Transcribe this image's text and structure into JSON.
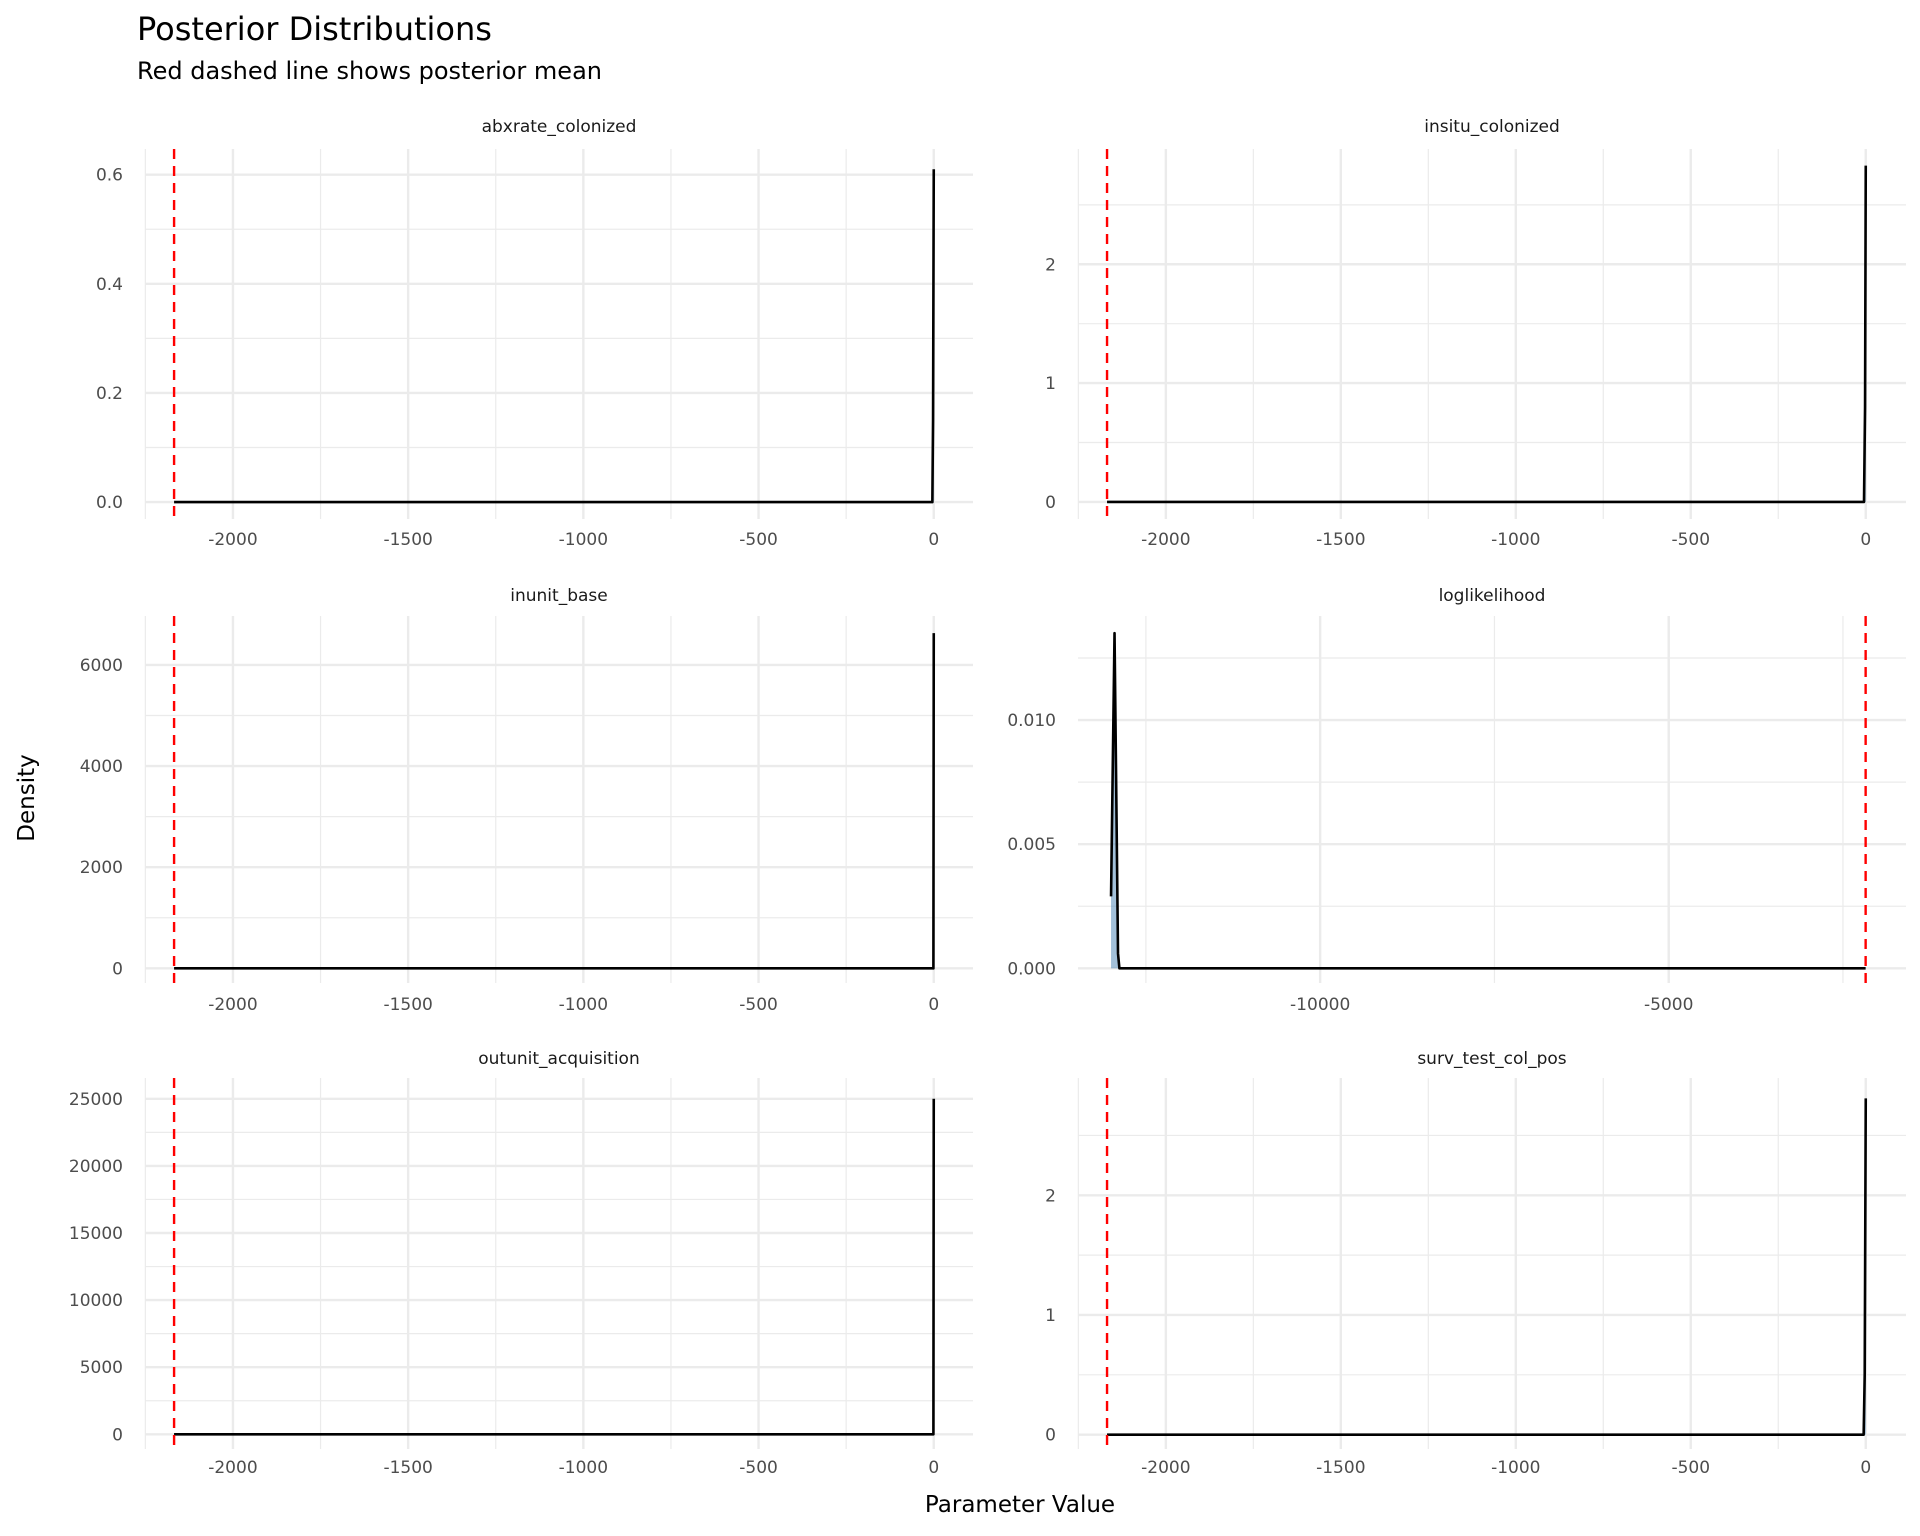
{
  "chart_data": {
    "type": "area",
    "title": "Posterior Distributions",
    "subtitle": "Red dashed line shows posterior mean",
    "xlabel": "Parameter Value",
    "ylabel": "Density",
    "grid": true,
    "colors": {
      "fill": "#4682B4",
      "line": "#000000",
      "mean_line": "#FF0000",
      "grid": "#EBEBEB"
    },
    "panels": [
      {
        "name": "abxrate_colonized",
        "xlim": [
          -2251,
          112
        ],
        "ylim": [
          -0.031,
          0.647
        ],
        "x_ticks": [
          -2000,
          -1500,
          -1000,
          -500,
          0
        ],
        "x_tick_labels": [
          "-2000",
          "-1500",
          "-1000",
          "-500",
          "0"
        ],
        "y_ticks": [
          0,
          0.2,
          0.4,
          0.6
        ],
        "y_tick_labels": [
          "0.0",
          "0.2",
          "0.4",
          "0.6"
        ],
        "mean": -2168,
        "density": [
          [
            -2168,
            0
          ],
          [
            -4,
            0
          ],
          [
            -2,
            0.15
          ],
          [
            0,
            0.61
          ]
        ]
      },
      {
        "name": "insitu_colonized",
        "xlim": [
          -2251,
          115
        ],
        "ylim": [
          -0.144,
          2.97
        ],
        "x_ticks": [
          -2000,
          -1500,
          -1000,
          -500,
          0
        ],
        "x_tick_labels": [
          "-2000",
          "-1500",
          "-1000",
          "-500",
          "0"
        ],
        "y_ticks": [
          0,
          1,
          2
        ],
        "y_tick_labels": [
          "0",
          "1",
          "2"
        ],
        "mean": -2168,
        "density": [
          [
            -2168,
            0
          ],
          [
            -5,
            0
          ],
          [
            -2,
            0.8
          ],
          [
            0,
            2.83
          ]
        ]
      },
      {
        "name": "inunit_base",
        "xlim": [
          -2251,
          112
        ],
        "ylim": [
          -290,
          6968
        ],
        "x_ticks": [
          -2000,
          -1500,
          -1000,
          -500,
          0
        ],
        "x_tick_labels": [
          "-2000",
          "-1500",
          "-1000",
          "-500",
          "0"
        ],
        "y_ticks": [
          0,
          2000,
          4000,
          6000
        ],
        "y_tick_labels": [
          "0",
          "2000",
          "4000",
          "6000"
        ],
        "mean": -2168,
        "density": [
          [
            -2168,
            0
          ],
          [
            -1,
            0
          ],
          [
            0,
            6630
          ]
        ]
      },
      {
        "name": "loglikelihood",
        "xlim": [
          -13474,
          -1596
        ],
        "ylim": [
          -0.00059,
          0.01419
        ],
        "x_ticks": [
          -10000,
          -5000
        ],
        "x_tick_labels": [
          "-10000",
          "-5000"
        ],
        "y_ticks": [
          0,
          0.005,
          0.01
        ],
        "y_tick_labels": [
          "0.000",
          "0.005",
          "0.010"
        ],
        "mean": -2175,
        "density": [
          [
            -13000,
            0.0029
          ],
          [
            -12950,
            0.0135
          ],
          [
            -12900,
            0.0006
          ],
          [
            -12880,
            0
          ],
          [
            -2175,
            0
          ]
        ]
      },
      {
        "name": "outunit_acquisition",
        "xlim": [
          -2251,
          112
        ],
        "ylim": [
          -1095,
          26550
        ],
        "x_ticks": [
          -2000,
          -1500,
          -1000,
          -500,
          0
        ],
        "x_tick_labels": [
          "-2000",
          "-1500",
          "-1000",
          "-500",
          "0"
        ],
        "y_ticks": [
          0,
          5000,
          10000,
          15000,
          20000,
          25000
        ],
        "y_tick_labels": [
          "0",
          "5000",
          "10000",
          "15000",
          "20000",
          "25000"
        ],
        "mean": -2168,
        "density": [
          [
            -2168,
            0
          ],
          [
            -1,
            0
          ],
          [
            0,
            25000
          ]
        ]
      },
      {
        "name": "surv_test_col_pos",
        "xlim": [
          -2251,
          115
        ],
        "ylim": [
          -0.12,
          2.98
        ],
        "x_ticks": [
          -2000,
          -1500,
          -1000,
          -500,
          0
        ],
        "x_tick_labels": [
          "-2000",
          "-1500",
          "-1000",
          "-500",
          "0"
        ],
        "y_ticks": [
          0,
          1,
          2
        ],
        "y_tick_labels": [
          "0",
          "1",
          "2"
        ],
        "mean": -2168,
        "density": [
          [
            -2168,
            0
          ],
          [
            -6,
            0
          ],
          [
            -3,
            0.5
          ],
          [
            0,
            2.81
          ]
        ]
      }
    ]
  }
}
